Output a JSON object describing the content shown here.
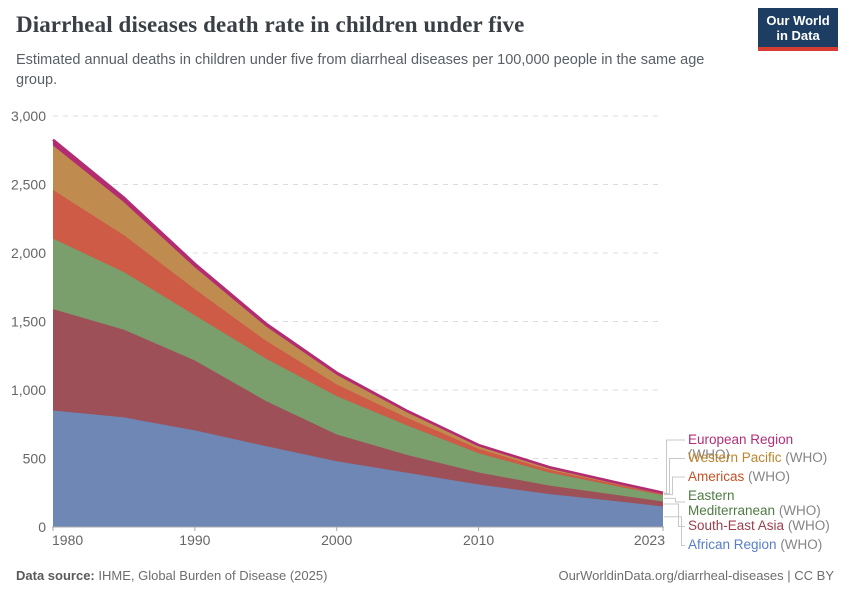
{
  "header": {
    "title": "Diarrheal diseases death rate in children under five",
    "logo_line1": "Our World",
    "logo_line2": "in Data"
  },
  "subtitle": "Estimated annual deaths in children under five from diarrheal diseases per 100,000 people in the same age group.",
  "chart_data": {
    "type": "area",
    "stacked": true,
    "title": "Diarrheal diseases death rate in children under five",
    "xlabel": "",
    "ylabel": "",
    "x": [
      1980,
      1985,
      1990,
      1995,
      2000,
      2005,
      2010,
      2015,
      2020,
      2023
    ],
    "series": [
      {
        "name": "African Region (WHO)",
        "color": "#6f87b5",
        "label_color": "#577ec9",
        "values": [
          850,
          800,
          705,
          590,
          480,
          395,
          310,
          240,
          185,
          150
        ]
      },
      {
        "name": "South-East Asia (WHO)",
        "color": "#9d5058",
        "label_color": "#9c3f4f",
        "values": [
          740,
          640,
          510,
          330,
          195,
          130,
          88,
          62,
          45,
          36
        ]
      },
      {
        "name": "Eastern Mediterranean (WHO)",
        "color": "#7a9e6c",
        "label_color": "#4e7c43",
        "values": [
          515,
          420,
          330,
          310,
          280,
          215,
          140,
          95,
          62,
          46
        ]
      },
      {
        "name": "Americas (WHO)",
        "color": "#cd5b45",
        "label_color": "#c35226",
        "values": [
          355,
          270,
          190,
          130,
          85,
          55,
          32,
          20,
          13,
          9
        ]
      },
      {
        "name": "Western Pacific (WHO)",
        "color": "#bf8b4e",
        "label_color": "#bc842d",
        "values": [
          325,
          240,
          160,
          105,
          70,
          40,
          22,
          14,
          9,
          6
        ]
      },
      {
        "name": "European Region (WHO)",
        "color": "#b32c72",
        "label_color": "#b32d77",
        "values": [
          42,
          33,
          26,
          20,
          16,
          10,
          6,
          5,
          4,
          3
        ]
      }
    ],
    "ylim": [
      0,
      3000
    ],
    "y_ticks": [
      {
        "value": 0,
        "label": "0"
      },
      {
        "value": 500,
        "label": "500"
      },
      {
        "value": 1000,
        "label": "1,000"
      },
      {
        "value": 1500,
        "label": "1,500"
      },
      {
        "value": 2000,
        "label": "2,000"
      },
      {
        "value": 2500,
        "label": "2,500"
      },
      {
        "value": 3000,
        "label": "3,000"
      }
    ],
    "x_ticks": [
      {
        "value": 1980,
        "label": "1980"
      },
      {
        "value": 1990,
        "label": "1990"
      },
      {
        "value": 2000,
        "label": "2000"
      },
      {
        "value": 2010,
        "label": "2010"
      },
      {
        "value": 2023,
        "label": "2023"
      }
    ],
    "grid": "dashed horizontal",
    "legend_position": "right"
  },
  "legend": {
    "suffix": " (WHO)",
    "items": [
      {
        "series": 5,
        "name": "European Region",
        "color": "#b32d77"
      },
      {
        "series": 4,
        "name": "Western Pacific",
        "color": "#bc842d"
      },
      {
        "series": 3,
        "name": "Americas",
        "color": "#c35226"
      },
      {
        "series": 2,
        "name": "Eastern",
        "name2": "Mediterranean",
        "color": "#4e7c43"
      },
      {
        "series": 1,
        "name": "South-East Asia",
        "color": "#9c3f4f"
      },
      {
        "series": 0,
        "name": "African Region",
        "color": "#577ec9"
      }
    ]
  },
  "footer": {
    "source_label": "Data source:",
    "source_text": " IHME, Global Burden of Disease (2025)",
    "right_text": "OurWorldinData.org/diarrheal-diseases | CC BY"
  }
}
